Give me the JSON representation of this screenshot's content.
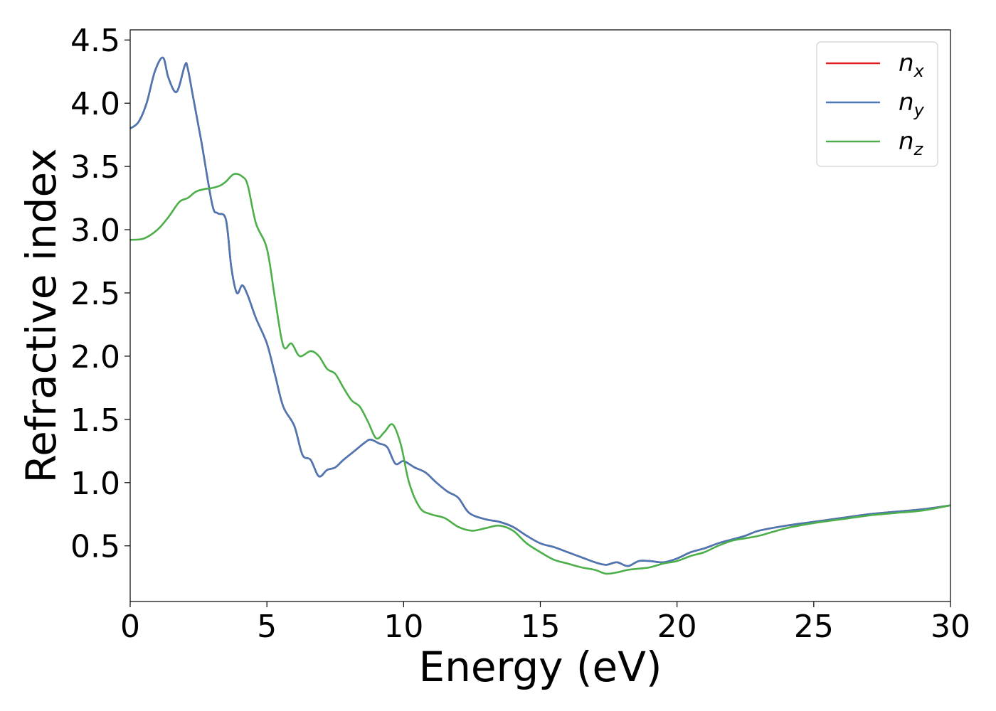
{
  "chart_data": {
    "type": "line",
    "xlabel": "Energy (eV)",
    "ylabel": "Refractive index",
    "xlim": [
      0,
      30
    ],
    "ylim": [
      0.06,
      4.58
    ],
    "xticks": [
      0,
      5,
      10,
      15,
      20,
      25,
      30
    ],
    "xtick_labels": [
      "0",
      "5",
      "10",
      "15",
      "20",
      "25",
      "30"
    ],
    "yticks": [
      0.5,
      1.0,
      1.5,
      2.0,
      2.5,
      3.0,
      3.5,
      4.0,
      4.5
    ],
    "ytick_labels": [
      "0.5",
      "1.0",
      "1.5",
      "2.0",
      "2.5",
      "3.0",
      "3.5",
      "4.0",
      "4.5"
    ],
    "grid": false,
    "legend_position": "top-right",
    "series": [
      {
        "name": "n",
        "subscript": "x",
        "color": "#e41a1c",
        "x": [
          0,
          0.3,
          0.6,
          0.9,
          1.2,
          1.4,
          1.7,
          2.0,
          2.1,
          2.3,
          2.6,
          3.0,
          3.2,
          3.5,
          3.7,
          3.9,
          4.1,
          4.3,
          4.6,
          5.0,
          5.3,
          5.6,
          6.0,
          6.3,
          6.6,
          6.9,
          7.2,
          7.5,
          7.8,
          8.2,
          8.6,
          8.8,
          9.1,
          9.4,
          9.7,
          10.0,
          10.4,
          10.8,
          11.2,
          11.6,
          12.0,
          12.4,
          13.0,
          13.5,
          14.0,
          14.5,
          15.0,
          15.5,
          16.0,
          16.5,
          17.0,
          17.4,
          17.8,
          18.2,
          18.6,
          19.0,
          19.5,
          20.0,
          20.5,
          21.0,
          21.5,
          22.0,
          22.5,
          23.0,
          24.0,
          25.0,
          26.0,
          27.0,
          28.0,
          29.0,
          30.0
        ],
        "y": [
          3.8,
          3.85,
          4.0,
          4.25,
          4.36,
          4.2,
          4.09,
          4.3,
          4.28,
          4.05,
          3.7,
          3.2,
          3.13,
          3.08,
          2.7,
          2.5,
          2.56,
          2.48,
          2.3,
          2.1,
          1.85,
          1.6,
          1.45,
          1.22,
          1.18,
          1.05,
          1.1,
          1.12,
          1.18,
          1.25,
          1.32,
          1.34,
          1.31,
          1.28,
          1.15,
          1.17,
          1.12,
          1.08,
          1.0,
          0.93,
          0.88,
          0.76,
          0.71,
          0.69,
          0.65,
          0.58,
          0.52,
          0.49,
          0.45,
          0.41,
          0.37,
          0.35,
          0.37,
          0.34,
          0.38,
          0.38,
          0.37,
          0.4,
          0.45,
          0.48,
          0.52,
          0.55,
          0.58,
          0.62,
          0.66,
          0.69,
          0.72,
          0.75,
          0.77,
          0.79,
          0.82
        ]
      },
      {
        "name": "n",
        "subscript": "y",
        "color": "#4a78b4",
        "x": [
          0,
          0.3,
          0.6,
          0.9,
          1.2,
          1.4,
          1.7,
          2.0,
          2.1,
          2.3,
          2.6,
          3.0,
          3.2,
          3.5,
          3.7,
          3.9,
          4.1,
          4.3,
          4.6,
          5.0,
          5.3,
          5.6,
          6.0,
          6.3,
          6.6,
          6.9,
          7.2,
          7.5,
          7.8,
          8.2,
          8.6,
          8.8,
          9.1,
          9.4,
          9.7,
          10.0,
          10.4,
          10.8,
          11.2,
          11.6,
          12.0,
          12.4,
          13.0,
          13.5,
          14.0,
          14.5,
          15.0,
          15.5,
          16.0,
          16.5,
          17.0,
          17.4,
          17.8,
          18.2,
          18.6,
          19.0,
          19.5,
          20.0,
          20.5,
          21.0,
          21.5,
          22.0,
          22.5,
          23.0,
          24.0,
          25.0,
          26.0,
          27.0,
          28.0,
          29.0,
          30.0
        ],
        "y": [
          3.8,
          3.85,
          4.0,
          4.25,
          4.36,
          4.2,
          4.09,
          4.3,
          4.28,
          4.05,
          3.7,
          3.2,
          3.13,
          3.08,
          2.7,
          2.5,
          2.56,
          2.48,
          2.3,
          2.1,
          1.85,
          1.6,
          1.45,
          1.22,
          1.18,
          1.05,
          1.1,
          1.12,
          1.18,
          1.25,
          1.32,
          1.34,
          1.31,
          1.28,
          1.15,
          1.17,
          1.12,
          1.08,
          1.0,
          0.93,
          0.88,
          0.76,
          0.71,
          0.69,
          0.65,
          0.58,
          0.52,
          0.49,
          0.45,
          0.41,
          0.37,
          0.35,
          0.37,
          0.34,
          0.38,
          0.38,
          0.37,
          0.4,
          0.45,
          0.48,
          0.52,
          0.55,
          0.58,
          0.62,
          0.66,
          0.69,
          0.72,
          0.75,
          0.77,
          0.79,
          0.82
        ]
      },
      {
        "name": "n",
        "subscript": "z",
        "color": "#4daf4a",
        "x": [
          0,
          0.5,
          1.0,
          1.4,
          1.8,
          2.1,
          2.4,
          2.7,
          3.0,
          3.3,
          3.5,
          3.8,
          4.1,
          4.3,
          4.6,
          5.0,
          5.3,
          5.6,
          5.9,
          6.2,
          6.6,
          6.9,
          7.2,
          7.5,
          7.8,
          8.1,
          8.4,
          8.7,
          9.0,
          9.3,
          9.6,
          9.9,
          10.2,
          10.6,
          11.0,
          11.5,
          12.0,
          12.5,
          13.0,
          13.5,
          14.0,
          14.5,
          15.0,
          15.5,
          16.0,
          16.5,
          17.0,
          17.4,
          17.8,
          18.2,
          18.6,
          19.0,
          19.5,
          20.0,
          20.5,
          21.0,
          21.5,
          22.0,
          22.5,
          23.0,
          24.0,
          25.0,
          26.0,
          27.0,
          28.0,
          29.0,
          30.0
        ],
        "y": [
          2.92,
          2.93,
          3.0,
          3.1,
          3.22,
          3.25,
          3.3,
          3.32,
          3.33,
          3.35,
          3.38,
          3.44,
          3.42,
          3.35,
          3.05,
          2.85,
          2.45,
          2.08,
          2.1,
          2.0,
          2.04,
          2.0,
          1.9,
          1.86,
          1.75,
          1.65,
          1.6,
          1.48,
          1.35,
          1.4,
          1.46,
          1.3,
          1.0,
          0.8,
          0.75,
          0.72,
          0.65,
          0.62,
          0.64,
          0.66,
          0.62,
          0.52,
          0.45,
          0.39,
          0.36,
          0.33,
          0.31,
          0.28,
          0.29,
          0.31,
          0.32,
          0.33,
          0.36,
          0.38,
          0.42,
          0.45,
          0.5,
          0.54,
          0.56,
          0.58,
          0.64,
          0.68,
          0.71,
          0.74,
          0.76,
          0.78,
          0.82
        ]
      }
    ]
  }
}
